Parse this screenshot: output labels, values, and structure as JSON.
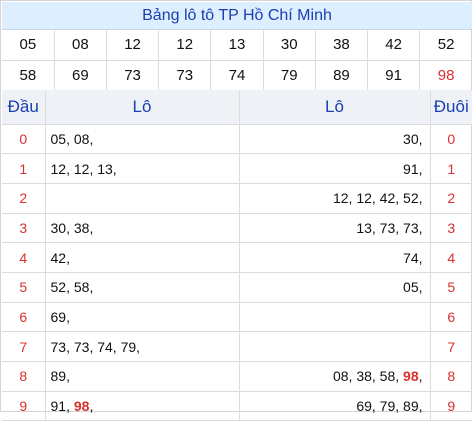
{
  "title": "Bảng lô tô TP Hồ Chí Minh",
  "numbers_row1": [
    "05",
    "08",
    "12",
    "12",
    "13",
    "30",
    "38",
    "42",
    "52"
  ],
  "numbers_row2": [
    "58",
    "69",
    "73",
    "73",
    "74",
    "79",
    "89",
    "91",
    "98"
  ],
  "highlight_number": "98",
  "headers": {
    "dau": "Đầu",
    "lo_left": "Lô",
    "lo_right": "Lô",
    "duoi": "Đuôi"
  },
  "rows": [
    {
      "dau": "0",
      "left": [
        "05",
        "08"
      ],
      "right": [
        "30"
      ],
      "duoi": "0"
    },
    {
      "dau": "1",
      "left": [
        "12",
        "12",
        "13"
      ],
      "right": [
        "91"
      ],
      "duoi": "1"
    },
    {
      "dau": "2",
      "left": [],
      "right": [
        "12",
        "12",
        "42",
        "52"
      ],
      "duoi": "2"
    },
    {
      "dau": "3",
      "left": [
        "30",
        "38"
      ],
      "right": [
        "13",
        "73",
        "73"
      ],
      "duoi": "3"
    },
    {
      "dau": "4",
      "left": [
        "42"
      ],
      "right": [
        "74"
      ],
      "duoi": "4"
    },
    {
      "dau": "5",
      "left": [
        "52",
        "58"
      ],
      "right": [
        "05"
      ],
      "duoi": "5"
    },
    {
      "dau": "6",
      "left": [
        "69"
      ],
      "right": [],
      "duoi": "6"
    },
    {
      "dau": "7",
      "left": [
        "73",
        "73",
        "74",
        "79"
      ],
      "right": [],
      "duoi": "7"
    },
    {
      "dau": "8",
      "left": [
        "89"
      ],
      "right": [
        "08",
        "38",
        "58",
        "98"
      ],
      "duoi": "8"
    },
    {
      "dau": "9",
      "left": [
        "91",
        "98"
      ],
      "right": [
        "69",
        "79",
        "89"
      ],
      "duoi": "9"
    }
  ],
  "colors": {
    "title_bg": "#ddeeff",
    "title_text": "#1a3fb0",
    "header_bg": "#eef1f6",
    "accent_red": "#d93030"
  }
}
